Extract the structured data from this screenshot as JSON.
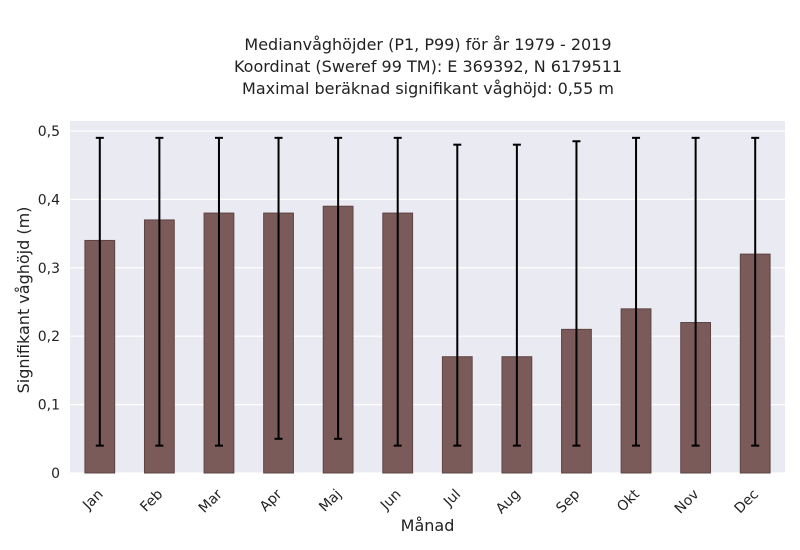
{
  "chart_data": {
    "type": "bar",
    "title_lines": [
      "Medianvåghöjder (P1, P99) för år 1979 - 2019",
      "Koordinat (Sweref 99 TM): E 369392, N 6179511",
      "Maximal beräknad signifikant våghöjd: 0,55 m"
    ],
    "xlabel": "Månad",
    "ylabel": "Signifikant våghöjd (m)",
    "ylim": [
      0,
      0.5
    ],
    "yticks": [
      "0",
      "0,1",
      "0,2",
      "0,3",
      "0,4",
      "0,5"
    ],
    "categories": [
      "Jan",
      "Feb",
      "Mar",
      "Apr",
      "Maj",
      "Jun",
      "Jul",
      "Aug",
      "Sep",
      "Okt",
      "Nov",
      "Dec"
    ],
    "values": [
      0.34,
      0.37,
      0.38,
      0.38,
      0.39,
      0.38,
      0.17,
      0.17,
      0.21,
      0.24,
      0.22,
      0.32
    ],
    "p1": [
      0.04,
      0.04,
      0.04,
      0.05,
      0.05,
      0.04,
      0.04,
      0.04,
      0.04,
      0.04,
      0.04,
      0.04
    ],
    "p99": [
      0.49,
      0.49,
      0.49,
      0.49,
      0.49,
      0.49,
      0.48,
      0.48,
      0.485,
      0.49,
      0.49,
      0.49
    ],
    "grid": true,
    "colors": {
      "bar": "#7b5a5a",
      "bar_edge": "#5e4444",
      "errorbar": "#000000",
      "plot_bg": "#eaeaf2",
      "grid": "#ffffff"
    }
  }
}
